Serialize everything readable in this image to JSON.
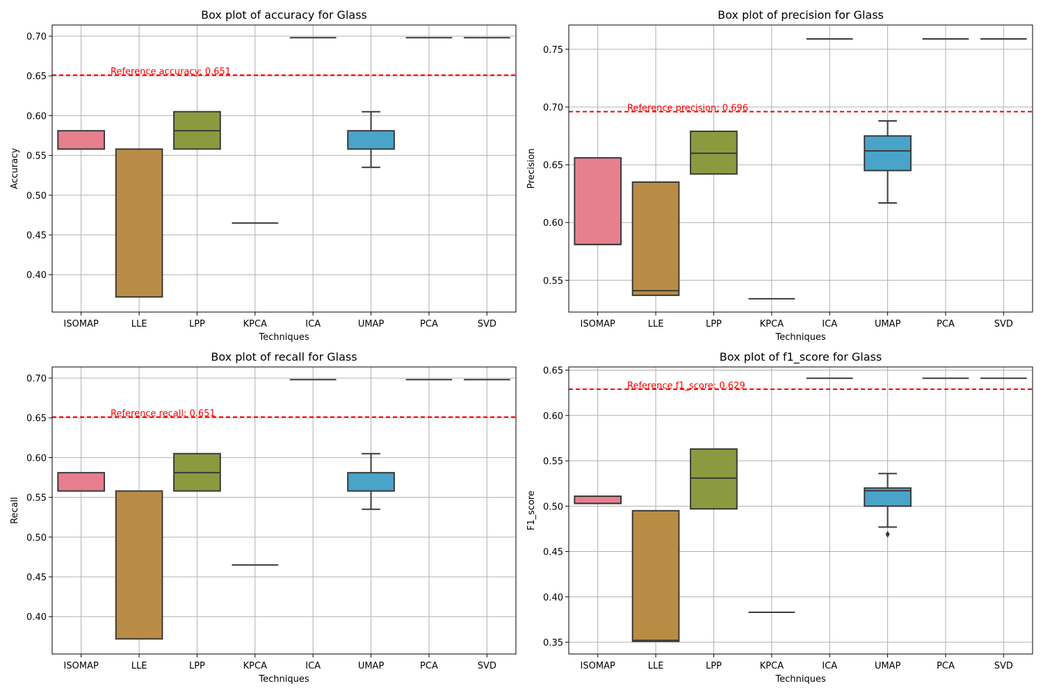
{
  "figure": {
    "background": "#ffffff"
  },
  "style": {
    "box_colors": [
      "#e77f8f",
      "#b98c45",
      "#8c9a3f",
      "#3d9f6f",
      "#46a3a8",
      "#4aa3c9",
      "#9b8fdc",
      "#e07fc1"
    ],
    "box_edge": "#3a3a3a",
    "grid_color": "#b0b0b0",
    "reference_color": "#ff0000"
  },
  "chart_data": [
    {
      "type": "box",
      "title": "Box plot of accuracy for Glass",
      "xlabel": "Techniques",
      "ylabel": "Accuracy",
      "ylim": [
        0.353,
        0.714
      ],
      "yticks": [
        0.4,
        0.45,
        0.5,
        0.55,
        0.6,
        0.65,
        0.7
      ],
      "ytick_labels": [
        "0.40",
        "0.45",
        "0.50",
        "0.55",
        "0.60",
        "0.65",
        "0.70"
      ],
      "grid": true,
      "categories": [
        "ISOMAP",
        "LLE",
        "LPP",
        "KPCA",
        "ICA",
        "UMAP",
        "PCA",
        "SVD"
      ],
      "boxes": [
        {
          "q1": 0.558,
          "median": 0.558,
          "q3": 0.581,
          "whisker_low": 0.558,
          "whisker_high": 0.581,
          "outliers": []
        },
        {
          "q1": 0.372,
          "median": 0.558,
          "q3": 0.558,
          "whisker_low": 0.372,
          "whisker_high": 0.558,
          "outliers": []
        },
        {
          "q1": 0.558,
          "median": 0.581,
          "q3": 0.605,
          "whisker_low": 0.558,
          "whisker_high": 0.605,
          "outliers": []
        },
        {
          "q1": 0.465,
          "median": 0.465,
          "q3": 0.465,
          "whisker_low": 0.465,
          "whisker_high": 0.465,
          "outliers": []
        },
        {
          "q1": 0.698,
          "median": 0.698,
          "q3": 0.698,
          "whisker_low": 0.698,
          "whisker_high": 0.698,
          "outliers": []
        },
        {
          "q1": 0.558,
          "median": 0.558,
          "q3": 0.581,
          "whisker_low": 0.535,
          "whisker_high": 0.605,
          "outliers": []
        },
        {
          "q1": 0.698,
          "median": 0.698,
          "q3": 0.698,
          "whisker_low": 0.698,
          "whisker_high": 0.698,
          "outliers": []
        },
        {
          "q1": 0.698,
          "median": 0.698,
          "q3": 0.698,
          "whisker_low": 0.698,
          "whisker_high": 0.698,
          "outliers": []
        }
      ],
      "reference": {
        "value": 0.651,
        "label": "Reference accuracy: 0.651"
      }
    },
    {
      "type": "box",
      "title": "Box plot of precision for Glass",
      "xlabel": "Techniques",
      "ylabel": "Precision",
      "ylim": [
        0.5225,
        0.771
      ],
      "yticks": [
        0.55,
        0.6,
        0.65,
        0.7,
        0.75
      ],
      "ytick_labels": [
        "0.55",
        "0.60",
        "0.65",
        "0.70",
        "0.75"
      ],
      "grid": true,
      "categories": [
        "ISOMAP",
        "LLE",
        "LPP",
        "KPCA",
        "ICA",
        "UMAP",
        "PCA",
        "SVD"
      ],
      "boxes": [
        {
          "q1": 0.581,
          "median": 0.581,
          "q3": 0.656,
          "whisker_low": 0.581,
          "whisker_high": 0.656,
          "outliers": []
        },
        {
          "q1": 0.537,
          "median": 0.541,
          "q3": 0.635,
          "whisker_low": 0.537,
          "whisker_high": 0.635,
          "outliers": []
        },
        {
          "q1": 0.642,
          "median": 0.66,
          "q3": 0.679,
          "whisker_low": 0.642,
          "whisker_high": 0.679,
          "outliers": []
        },
        {
          "q1": 0.534,
          "median": 0.534,
          "q3": 0.534,
          "whisker_low": 0.534,
          "whisker_high": 0.534,
          "outliers": []
        },
        {
          "q1": 0.759,
          "median": 0.759,
          "q3": 0.759,
          "whisker_low": 0.759,
          "whisker_high": 0.759,
          "outliers": []
        },
        {
          "q1": 0.645,
          "median": 0.662,
          "q3": 0.675,
          "whisker_low": 0.617,
          "whisker_high": 0.688,
          "outliers": []
        },
        {
          "q1": 0.759,
          "median": 0.759,
          "q3": 0.759,
          "whisker_low": 0.759,
          "whisker_high": 0.759,
          "outliers": []
        },
        {
          "q1": 0.759,
          "median": 0.759,
          "q3": 0.759,
          "whisker_low": 0.759,
          "whisker_high": 0.759,
          "outliers": []
        }
      ],
      "reference": {
        "value": 0.696,
        "label": "Reference precision: 0.696"
      }
    },
    {
      "type": "box",
      "title": "Box plot of recall for Glass",
      "xlabel": "Techniques",
      "ylabel": "Recall",
      "ylim": [
        0.353,
        0.714
      ],
      "yticks": [
        0.4,
        0.45,
        0.5,
        0.55,
        0.6,
        0.65,
        0.7
      ],
      "ytick_labels": [
        "0.40",
        "0.45",
        "0.50",
        "0.55",
        "0.60",
        "0.65",
        "0.70"
      ],
      "grid": true,
      "categories": [
        "ISOMAP",
        "LLE",
        "LPP",
        "KPCA",
        "ICA",
        "UMAP",
        "PCA",
        "SVD"
      ],
      "boxes": [
        {
          "q1": 0.558,
          "median": 0.558,
          "q3": 0.581,
          "whisker_low": 0.558,
          "whisker_high": 0.581,
          "outliers": []
        },
        {
          "q1": 0.372,
          "median": 0.558,
          "q3": 0.558,
          "whisker_low": 0.372,
          "whisker_high": 0.558,
          "outliers": []
        },
        {
          "q1": 0.558,
          "median": 0.581,
          "q3": 0.605,
          "whisker_low": 0.558,
          "whisker_high": 0.605,
          "outliers": []
        },
        {
          "q1": 0.465,
          "median": 0.465,
          "q3": 0.465,
          "whisker_low": 0.465,
          "whisker_high": 0.465,
          "outliers": []
        },
        {
          "q1": 0.698,
          "median": 0.698,
          "q3": 0.698,
          "whisker_low": 0.698,
          "whisker_high": 0.698,
          "outliers": []
        },
        {
          "q1": 0.558,
          "median": 0.558,
          "q3": 0.581,
          "whisker_low": 0.535,
          "whisker_high": 0.605,
          "outliers": []
        },
        {
          "q1": 0.698,
          "median": 0.698,
          "q3": 0.698,
          "whisker_low": 0.698,
          "whisker_high": 0.698,
          "outliers": []
        },
        {
          "q1": 0.698,
          "median": 0.698,
          "q3": 0.698,
          "whisker_low": 0.698,
          "whisker_high": 0.698,
          "outliers": []
        }
      ],
      "reference": {
        "value": 0.651,
        "label": "Reference recall: 0.651"
      }
    },
    {
      "type": "box",
      "title": "Box plot of f1_score for Glass",
      "xlabel": "Techniques",
      "ylabel": "F1_score",
      "ylim": [
        0.337,
        0.6535
      ],
      "yticks": [
        0.35,
        0.4,
        0.45,
        0.5,
        0.55,
        0.6,
        0.65
      ],
      "ytick_labels": [
        "0.35",
        "0.40",
        "0.45",
        "0.50",
        "0.55",
        "0.60",
        "0.65"
      ],
      "grid": true,
      "categories": [
        "ISOMAP",
        "LLE",
        "LPP",
        "KPCA",
        "ICA",
        "UMAP",
        "PCA",
        "SVD"
      ],
      "boxes": [
        {
          "q1": 0.503,
          "median": 0.503,
          "q3": 0.511,
          "whisker_low": 0.503,
          "whisker_high": 0.511,
          "outliers": []
        },
        {
          "q1": 0.351,
          "median": 0.352,
          "q3": 0.495,
          "whisker_low": 0.351,
          "whisker_high": 0.495,
          "outliers": []
        },
        {
          "q1": 0.497,
          "median": 0.531,
          "q3": 0.563,
          "whisker_low": 0.497,
          "whisker_high": 0.563,
          "outliers": []
        },
        {
          "q1": 0.383,
          "median": 0.383,
          "q3": 0.383,
          "whisker_low": 0.383,
          "whisker_high": 0.383,
          "outliers": []
        },
        {
          "q1": 0.641,
          "median": 0.641,
          "q3": 0.641,
          "whisker_low": 0.641,
          "whisker_high": 0.641,
          "outliers": []
        },
        {
          "q1": 0.5,
          "median": 0.517,
          "q3": 0.52,
          "whisker_low": 0.477,
          "whisker_high": 0.536,
          "outliers": [
            0.469
          ]
        },
        {
          "q1": 0.641,
          "median": 0.641,
          "q3": 0.641,
          "whisker_low": 0.641,
          "whisker_high": 0.641,
          "outliers": []
        },
        {
          "q1": 0.641,
          "median": 0.641,
          "q3": 0.641,
          "whisker_low": 0.641,
          "whisker_high": 0.641,
          "outliers": []
        }
      ],
      "reference": {
        "value": 0.629,
        "label": "Reference f1_score: 0.629"
      }
    }
  ]
}
